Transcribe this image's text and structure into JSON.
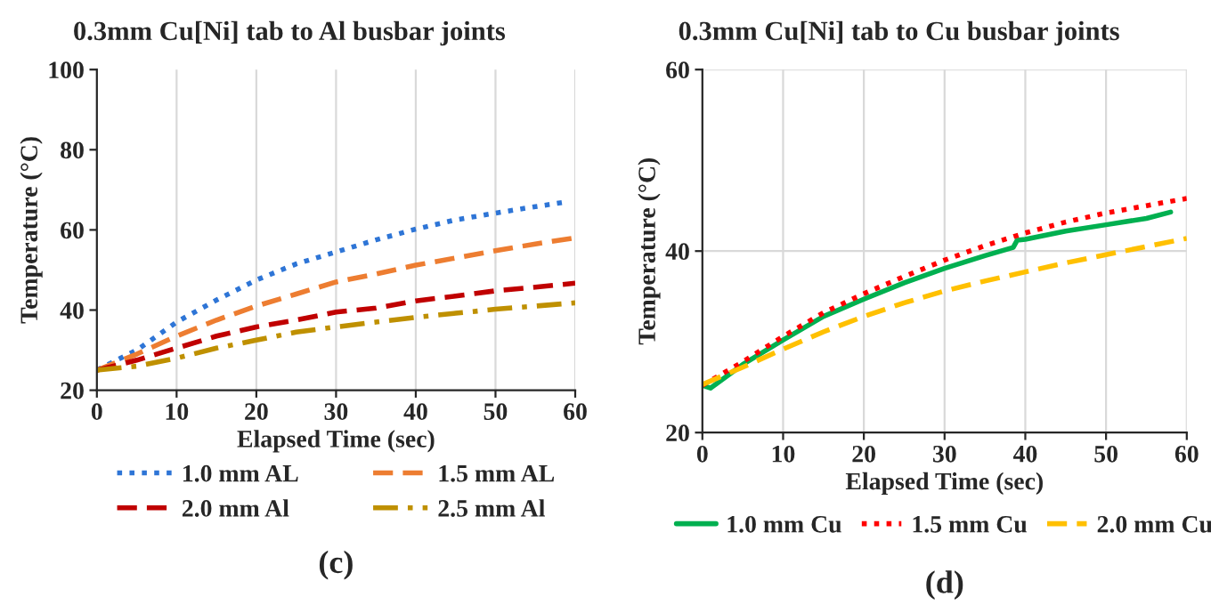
{
  "chart_data": [
    {
      "type": "line",
      "title": "0.3mm Cu[Ni] tab to Al busbar joints",
      "xlabel": "Elapsed Time (sec)",
      "ylabel": "Temperature (°C)",
      "annotations": [
        "(c)"
      ],
      "xlim": [
        0,
        60
      ],
      "ylim": [
        20,
        100
      ],
      "xticks": [
        0,
        10,
        20,
        30,
        40,
        50,
        60
      ],
      "yticks": [
        20,
        40,
        60,
        80,
        100
      ],
      "grid": "x",
      "legend": "bottom",
      "series": [
        {
          "name": "1.0 mm AL",
          "color": "#2e75d6",
          "line_style": "dotted",
          "x": [
            0,
            5,
            10,
            15,
            20,
            25,
            30,
            35,
            40,
            45,
            50,
            55,
            59
          ],
          "values": [
            25,
            30,
            37,
            42.5,
            47.5,
            51.5,
            54.5,
            57.5,
            60.2,
            62.5,
            64.2,
            65.8,
            67
          ]
        },
        {
          "name": "1.5 mm AL",
          "color": "#ed7d31",
          "line_style": "dashed",
          "x": [
            0,
            5,
            10,
            15,
            20,
            25,
            30,
            35,
            40,
            45,
            50,
            55,
            60
          ],
          "values": [
            25,
            29,
            33.5,
            37.5,
            41,
            44,
            47,
            49,
            51.2,
            53,
            54.8,
            56.5,
            58
          ]
        },
        {
          "name": "2.0 mm Al",
          "color": "#c00000",
          "line_style": "dashed",
          "x": [
            0,
            5,
            10,
            15,
            20,
            25,
            30,
            35,
            40,
            45,
            50,
            55,
            60
          ],
          "values": [
            25,
            27.5,
            30.5,
            33.5,
            35.8,
            37.5,
            39.5,
            40.5,
            42.3,
            43.5,
            44.8,
            45.7,
            46.7
          ]
        },
        {
          "name": "2.5 mm Al",
          "color": "#bf9000",
          "line_style": "dashdot",
          "x": [
            0,
            5,
            10,
            15,
            20,
            25,
            30,
            35,
            40,
            45,
            50,
            55,
            60
          ],
          "values": [
            25,
            26,
            28,
            30.5,
            32.5,
            34.5,
            35.8,
            37,
            38.2,
            39.2,
            40.2,
            41,
            41.8
          ]
        }
      ]
    },
    {
      "type": "line",
      "title": "0.3mm Cu[Ni] tab to Cu busbar joints",
      "xlabel": "Elapsed Time (sec)",
      "ylabel": "Temperature (°C)",
      "annotations": [
        "(d)"
      ],
      "xlim": [
        0,
        60
      ],
      "ylim": [
        20,
        60
      ],
      "xticks": [
        0,
        10,
        20,
        30,
        40,
        50,
        60
      ],
      "yticks": [
        20,
        40,
        60
      ],
      "grid": true,
      "legend": "bottom",
      "series": [
        {
          "name": "1.0 mm Cu",
          "color": "#00b050",
          "line_style": "solid",
          "x": [
            0,
            1,
            5,
            10,
            15,
            20,
            25,
            30,
            35,
            38.5,
            39,
            40,
            45,
            50,
            55,
            58
          ],
          "values": [
            25.2,
            24.9,
            27.5,
            30.2,
            32.8,
            34.7,
            36.5,
            38.1,
            39.5,
            40.4,
            41.2,
            41.3,
            42.2,
            42.9,
            43.6,
            44.3
          ]
        },
        {
          "name": "1.5 mm Cu",
          "color": "#ff0000",
          "line_style": "dotted",
          "x": [
            0,
            5,
            10,
            15,
            20,
            25,
            30,
            35,
            40,
            45,
            50,
            55,
            60
          ],
          "values": [
            25.2,
            27.8,
            30.6,
            33.2,
            35.3,
            37.2,
            39,
            40.6,
            42,
            43.2,
            44.2,
            45,
            45.8
          ]
        },
        {
          "name": "2.0 mm Cu",
          "color": "#ffc000",
          "line_style": "dashed",
          "x": [
            0,
            5,
            10,
            15,
            20,
            25,
            30,
            35,
            40,
            45,
            50,
            55,
            60
          ],
          "values": [
            25.3,
            27.2,
            29.2,
            31.1,
            32.8,
            34.3,
            35.6,
            36.7,
            37.7,
            38.7,
            39.6,
            40.5,
            41.4
          ]
        }
      ]
    }
  ]
}
